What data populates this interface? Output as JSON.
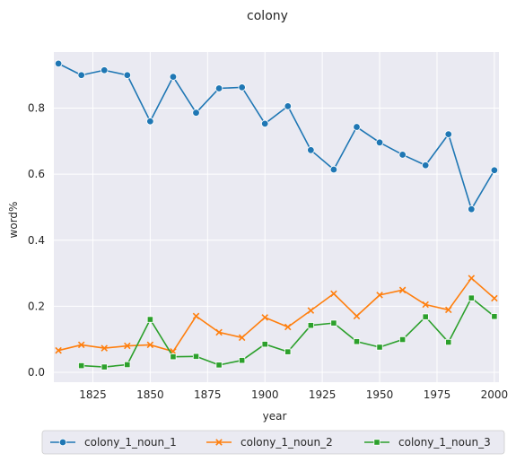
{
  "chart_data": {
    "type": "line",
    "title": "colony",
    "xlabel": "year",
    "ylabel": "word%",
    "xlim": [
      1808,
      2002
    ],
    "ylim": [
      -0.03,
      0.97
    ],
    "xticks": [
      1825,
      1850,
      1875,
      1900,
      1925,
      1950,
      1975,
      2000
    ],
    "yticks": [
      0.0,
      0.2,
      0.4,
      0.6,
      0.8
    ],
    "ytick_labels": [
      "0.0",
      "0.2",
      "0.4",
      "0.6",
      "0.8"
    ],
    "grid": true,
    "legend_position": "bottom-center",
    "series": [
      {
        "name": "colony_1_noun_1",
        "color": "#1f77b4",
        "marker": "circle",
        "x": [
          1810,
          1820,
          1830,
          1840,
          1850,
          1860,
          1870,
          1880,
          1890,
          1900,
          1910,
          1920,
          1930,
          1940,
          1950,
          1960,
          1970,
          1980,
          1990,
          2000
        ],
        "y": [
          0.935,
          0.9,
          0.915,
          0.9,
          0.76,
          0.895,
          0.786,
          0.86,
          0.863,
          0.753,
          0.806,
          0.673,
          0.614,
          0.743,
          0.696,
          0.659,
          0.627,
          0.721,
          0.494,
          0.612
        ]
      },
      {
        "name": "colony_1_noun_2",
        "color": "#ff7f0e",
        "marker": "x",
        "x": [
          1810,
          1820,
          1830,
          1840,
          1850,
          1860,
          1870,
          1880,
          1890,
          1900,
          1910,
          1920,
          1930,
          1940,
          1950,
          1960,
          1970,
          1980,
          1990,
          2000
        ],
        "y": [
          0.066,
          0.083,
          0.073,
          0.08,
          0.083,
          0.063,
          0.17,
          0.121,
          0.105,
          0.166,
          0.137,
          0.187,
          0.238,
          0.17,
          0.234,
          0.249,
          0.205,
          0.189,
          0.285,
          0.224
        ]
      },
      {
        "name": "colony_1_noun_3",
        "color": "#2ca02c",
        "marker": "square",
        "x": [
          1820,
          1830,
          1840,
          1850,
          1860,
          1870,
          1880,
          1890,
          1900,
          1910,
          1920,
          1930,
          1940,
          1950,
          1960,
          1970,
          1980,
          1990,
          2000
        ],
        "y": [
          0.02,
          0.016,
          0.023,
          0.16,
          0.047,
          0.048,
          0.022,
          0.036,
          0.085,
          0.062,
          0.142,
          0.149,
          0.093,
          0.076,
          0.099,
          0.168,
          0.091,
          0.225,
          0.169
        ]
      }
    ]
  }
}
